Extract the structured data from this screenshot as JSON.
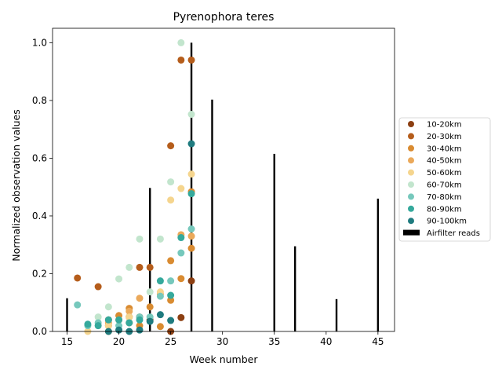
{
  "chart_data": {
    "type": "scatter",
    "title": "Pyrenophora teres",
    "xlabel": "Week number",
    "ylabel": "Normalized observation values",
    "xlim": [
      13.6,
      46.6
    ],
    "ylim": [
      0,
      1.05
    ],
    "xticks": [
      15,
      20,
      25,
      30,
      35,
      40,
      45
    ],
    "yticks": [
      0.0,
      0.2,
      0.4,
      0.6,
      0.8,
      1.0
    ],
    "grid": false,
    "legend_position": "right",
    "bars": {
      "name": "Airfilter reads",
      "color": "#000000",
      "x": [
        15,
        23,
        27,
        29,
        35,
        37,
        41,
        45
      ],
      "values": [
        0.115,
        0.497,
        1.0,
        0.803,
        0.615,
        0.295,
        0.112,
        0.46
      ]
    },
    "series": [
      {
        "name": "10-20km",
        "color": "#8c3f12",
        "x": [
          19,
          21,
          22,
          23,
          25,
          26,
          27
        ],
        "y": [
          0.04,
          0.05,
          0.05,
          0.04,
          0.0,
          0.048,
          0.175
        ]
      },
      {
        "name": "20-30km",
        "color": "#b55d1b",
        "x": [
          16,
          18,
          19,
          21,
          22,
          23,
          25,
          26,
          27
        ],
        "y": [
          0.185,
          0.155,
          0.02,
          0.03,
          0.222,
          0.222,
          0.643,
          0.94,
          0.94
        ]
      },
      {
        "name": "30-40km",
        "color": "#d98b31",
        "x": [
          19,
          20,
          21,
          22,
          23,
          24,
          25,
          25,
          26,
          27,
          27
        ],
        "y": [
          0.0,
          0.055,
          0.08,
          0.02,
          0.085,
          0.017,
          0.108,
          0.245,
          0.183,
          0.288,
          0.484
        ]
      },
      {
        "name": "40-50km",
        "color": "#eba95a",
        "x": [
          19,
          20,
          21,
          22,
          24,
          26,
          27
        ],
        "y": [
          0.03,
          0.04,
          0.07,
          0.115,
          0.13,
          0.335,
          0.33
        ]
      },
      {
        "name": "50-60km",
        "color": "#f5d58e",
        "x": [
          17,
          19,
          21,
          24,
          25,
          26,
          27
        ],
        "y": [
          0.0,
          0.02,
          0.05,
          0.137,
          0.455,
          0.495,
          0.545
        ]
      },
      {
        "name": "60-70km",
        "color": "#c2e5cd",
        "x": [
          18,
          19,
          20,
          21,
          22,
          23,
          24,
          25,
          26,
          27
        ],
        "y": [
          0.05,
          0.085,
          0.182,
          0.222,
          0.32,
          0.137,
          0.32,
          0.518,
          1.0,
          0.752
        ]
      },
      {
        "name": "70-80km",
        "color": "#76c8bc",
        "x": [
          16,
          17,
          18,
          20,
          22,
          23,
          24,
          25,
          26,
          27
        ],
        "y": [
          0.092,
          0.02,
          0.03,
          0.02,
          0.05,
          0.05,
          0.122,
          0.175,
          0.272,
          0.355
        ]
      },
      {
        "name": "80-90km",
        "color": "#35a99c",
        "x": [
          17,
          18,
          19,
          20,
          21,
          22,
          24,
          25,
          26,
          27
        ],
        "y": [
          0.025,
          0.02,
          0.04,
          0.04,
          0.03,
          0.04,
          0.175,
          0.125,
          0.325,
          0.477
        ]
      },
      {
        "name": "90-100km",
        "color": "#1f7b7f",
        "x": [
          19,
          20,
          21,
          22,
          23,
          24,
          25,
          27
        ],
        "y": [
          0.0,
          0.005,
          0.0,
          0.005,
          0.035,
          0.058,
          0.038,
          0.65
        ]
      }
    ]
  }
}
